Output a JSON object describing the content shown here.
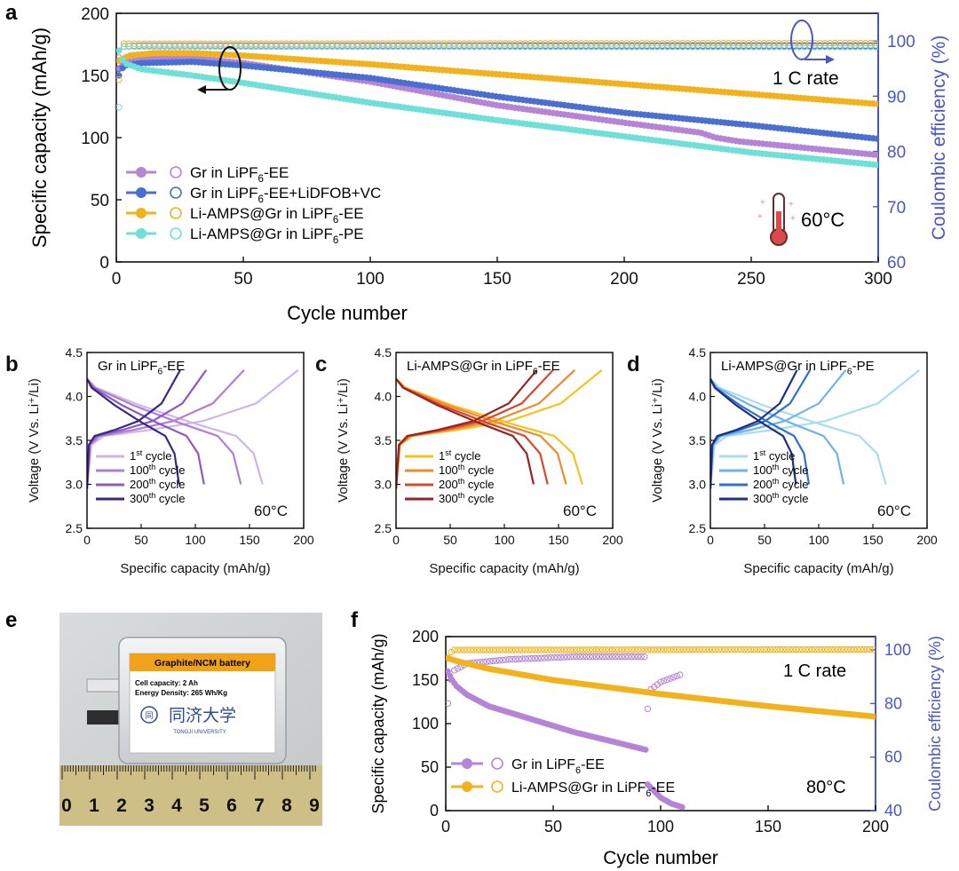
{
  "colors": {
    "purple": "#b584d6",
    "blue": "#4a6fd0",
    "orange": "#f2b21c",
    "cyan": "#6fe0d8",
    "axis_right": "#4a56c6"
  },
  "thermometer": "thermometer-icon",
  "chart_data": [
    {
      "id": "a",
      "panel_label": "a",
      "type": "scatter",
      "xlabel": "Cycle number",
      "ylabel": "Specific capacity (mAh/g)",
      "y2label": "Coulombic efficiency (%)",
      "xlim": [
        0,
        300
      ],
      "ylim": [
        0,
        200
      ],
      "y2lim": [
        60,
        105
      ],
      "xticks": [
        0,
        50,
        100,
        150,
        200,
        250,
        300
      ],
      "yticks": [
        0,
        50,
        100,
        150,
        200
      ],
      "y2ticks": [
        60,
        70,
        80,
        90,
        100
      ],
      "annotations": [
        "1 C rate",
        "60°C"
      ],
      "legend": [
        {
          "pre": "Gr in LiPF",
          "sub": "6",
          "post": "-EE",
          "color": "purple"
        },
        {
          "pre": "Gr in LiPF",
          "sub": "6",
          "post": "-EE+LiDFOB+VC",
          "color": "blue"
        },
        {
          "pre": "Li-AMPS@Gr in LiPF",
          "sub": "6",
          "post": "-EE",
          "color": "orange"
        },
        {
          "pre": "Li-AMPS@Gr in LiPF",
          "sub": "6",
          "post": "-PE",
          "color": "cyan"
        }
      ],
      "series": [
        {
          "color": "purple",
          "capacity": [
            [
              1,
              155
            ],
            [
              3,
              160
            ],
            [
              10,
              163
            ],
            [
              20,
              165
            ],
            [
              30,
              164
            ],
            [
              50,
              160
            ],
            [
              100,
              145
            ],
            [
              150,
              126
            ],
            [
              200,
              112
            ],
            [
              230,
              104
            ],
            [
              236,
              100
            ],
            [
              245,
              97
            ],
            [
              270,
              92
            ],
            [
              300,
              86
            ]
          ],
          "efficiency": [
            [
              1,
              97
            ],
            [
              3,
              99
            ],
            [
              10,
              99.2
            ],
            [
              300,
              99.2
            ]
          ]
        },
        {
          "color": "blue",
          "capacity": [
            [
              1,
              150
            ],
            [
              3,
              158
            ],
            [
              10,
              160
            ],
            [
              30,
              161
            ],
            [
              50,
              158
            ],
            [
              100,
              148
            ],
            [
              150,
              133
            ],
            [
              200,
              120
            ],
            [
              250,
              110
            ],
            [
              300,
              99
            ]
          ],
          "efficiency": [
            [
              1,
              95
            ],
            [
              3,
              99
            ],
            [
              300,
              99.1
            ]
          ]
        },
        {
          "color": "orange",
          "capacity": [
            [
              1,
              162
            ],
            [
              5,
              166
            ],
            [
              15,
              168
            ],
            [
              30,
              168
            ],
            [
              50,
              166
            ],
            [
              100,
              159
            ],
            [
              150,
              151
            ],
            [
              200,
              143
            ],
            [
              250,
              135
            ],
            [
              300,
              127
            ]
          ],
          "efficiency": [
            [
              1,
              93
            ],
            [
              3,
              99.5
            ],
            [
              300,
              99.6
            ]
          ]
        },
        {
          "color": "cyan",
          "capacity": [
            [
              1,
              170
            ],
            [
              3,
              160
            ],
            [
              10,
              155
            ],
            [
              30,
              150
            ],
            [
              50,
              144
            ],
            [
              100,
              128
            ],
            [
              150,
              114
            ],
            [
              200,
              101
            ],
            [
              250,
              88
            ],
            [
              300,
              78
            ]
          ],
          "efficiency": [
            [
              1,
              88
            ],
            [
              3,
              99
            ],
            [
              300,
              98.9
            ]
          ]
        }
      ]
    },
    {
      "id": "b",
      "panel_label": "b",
      "type": "line",
      "inset_pre": "Gr in LiPF",
      "inset_sub": "6",
      "inset_post": "-EE",
      "xlabel": "Specific capacity (mAh/g)",
      "ylabel": "Voltage (V Vs. Li⁺/Li)",
      "xlim": [
        0,
        200
      ],
      "ylim": [
        2.5,
        4.5
      ],
      "xticks": [
        0,
        50,
        100,
        150,
        200
      ],
      "yticks": [
        2.5,
        3.0,
        3.5,
        4.0,
        4.5
      ],
      "temperature": "60°C",
      "cycles": [
        {
          "num": "1",
          "sup": "st",
          "text": "cycle",
          "color": "#cdb7ea",
          "cap_charge": 195,
          "cap_discharge": 162
        },
        {
          "num": "100",
          "sup": "th",
          "text": "cycle",
          "color": "#b07ed6",
          "cap_charge": 145,
          "cap_discharge": 142
        },
        {
          "num": "200",
          "sup": "th",
          "text": "cycle",
          "color": "#8b5ac4",
          "cap_charge": 110,
          "cap_discharge": 108
        },
        {
          "num": "300",
          "sup": "th",
          "text": "cycle",
          "color": "#3b2685",
          "cap_charge": 86,
          "cap_discharge": 85
        }
      ]
    },
    {
      "id": "c",
      "panel_label": "c",
      "type": "line",
      "inset_pre": "Li-AMPS@Gr in LiPF",
      "inset_sub": "6",
      "inset_post": "-EE",
      "xlabel": "Specific capacity (mAh/g)",
      "ylabel": "Voltage (V Vs. Li⁺/Li)",
      "xlim": [
        0,
        200
      ],
      "ylim": [
        2.5,
        4.5
      ],
      "xticks": [
        0,
        50,
        100,
        150,
        200
      ],
      "yticks": [
        2.5,
        3.0,
        3.5,
        4.0,
        4.5
      ],
      "temperature": "60°C",
      "cycles": [
        {
          "num": "1",
          "sup": "st",
          "text": "cycle",
          "color": "#f7c11d",
          "cap_charge": 190,
          "cap_discharge": 172
        },
        {
          "num": "100",
          "sup": "th",
          "text": "cycle",
          "color": "#ef8a2f",
          "cap_charge": 165,
          "cap_discharge": 157
        },
        {
          "num": "200",
          "sup": "th",
          "text": "cycle",
          "color": "#d8482a",
          "cap_charge": 145,
          "cap_discharge": 140
        },
        {
          "num": "300",
          "sup": "th",
          "text": "cycle",
          "color": "#9a2222",
          "cap_charge": 130,
          "cap_discharge": 127
        }
      ]
    },
    {
      "id": "d",
      "panel_label": "d",
      "type": "line",
      "inset_pre": "Li-AMPS@Gr in LiPF",
      "inset_sub": "6",
      "inset_post": "-PE",
      "xlabel": "Specific capacity (mAh/g)",
      "ylabel": "Voltage (V Vs. Li⁺/Li)",
      "xlim": [
        0,
        200
      ],
      "ylim": [
        2.5,
        4.5
      ],
      "xticks": [
        0,
        50,
        100,
        150,
        200
      ],
      "yticks": [
        2.5,
        3.0,
        3.5,
        4.0,
        4.5
      ],
      "temperature": "60°C",
      "cycles": [
        {
          "num": "1",
          "sup": "st",
          "text": "cycle",
          "color": "#a9dcf0",
          "cap_charge": 193,
          "cap_discharge": 162
        },
        {
          "num": "100",
          "sup": "th",
          "text": "cycle",
          "color": "#6fb4e8",
          "cap_charge": 125,
          "cap_discharge": 123
        },
        {
          "num": "200",
          "sup": "th",
          "text": "cycle",
          "color": "#2f6fd0",
          "cap_charge": 92,
          "cap_discharge": 91
        },
        {
          "num": "300",
          "sup": "th",
          "text": "cycle",
          "color": "#1d2e86",
          "cap_charge": 80,
          "cap_discharge": 79
        }
      ]
    },
    {
      "id": "f",
      "panel_label": "f",
      "type": "scatter",
      "xlabel": "Cycle number",
      "ylabel": "Specific capacity (mAh/g)",
      "y2label": "Coulombic efficiency (%)",
      "xlim": [
        0,
        200
      ],
      "ylim": [
        0,
        200
      ],
      "y2lim": [
        40,
        105
      ],
      "xticks": [
        0,
        50,
        100,
        150,
        200
      ],
      "yticks": [
        0,
        50,
        100,
        150,
        200
      ],
      "y2ticks": [
        40,
        60,
        80,
        100
      ],
      "annotations": [
        "1 C rate",
        "80°C"
      ],
      "legend": [
        {
          "pre": "Gr in LiPF",
          "sub": "6",
          "post": "-EE",
          "color": "purple"
        },
        {
          "pre": "Li-AMPS@Gr in LiPF",
          "sub": "6",
          "post": "-EE",
          "color": "orange"
        }
      ],
      "series": [
        {
          "color": "purple",
          "capacity": [
            [
              1,
              160
            ],
            [
              3,
              150
            ],
            [
              5,
              143
            ],
            [
              10,
              133
            ],
            [
              20,
              120
            ],
            [
              40,
              105
            ],
            [
              60,
              90
            ],
            [
              80,
              78
            ],
            [
              93,
              70
            ],
            [
              94,
              30
            ],
            [
              96,
              25
            ],
            [
              100,
              15
            ],
            [
              105,
              8
            ],
            [
              110,
              4
            ]
          ],
          "efficiency": [
            [
              1,
              80
            ],
            [
              3,
              92
            ],
            [
              10,
              95
            ],
            [
              30,
              96.5
            ],
            [
              60,
              97.5
            ],
            [
              93,
              97.5
            ],
            [
              94,
              78
            ],
            [
              95,
              85
            ],
            [
              100,
              88
            ],
            [
              110,
              91
            ]
          ]
        },
        {
          "color": "orange",
          "capacity": [
            [
              1,
              175
            ],
            [
              5,
              172
            ],
            [
              20,
              163
            ],
            [
              50,
              150
            ],
            [
              100,
              134
            ],
            [
              150,
              120
            ],
            [
              200,
              108
            ]
          ],
          "efficiency": [
            [
              1,
              97
            ],
            [
              3,
              100
            ],
            [
              200,
              100.2
            ]
          ]
        }
      ]
    }
  ],
  "photo": {
    "panel_label": "e",
    "label_title": "Graphite/NCM battery",
    "cell_capacity": "Cell capacity: 2 Ah",
    "energy_density": "Energy Density: 265 Wh/Kg",
    "university_cn": "同济大学",
    "university_en": "TONGJI UNIVERSITY",
    "ruler_numbers": [
      "0",
      "1",
      "2",
      "3",
      "4",
      "5",
      "6",
      "7",
      "8",
      "9"
    ]
  }
}
